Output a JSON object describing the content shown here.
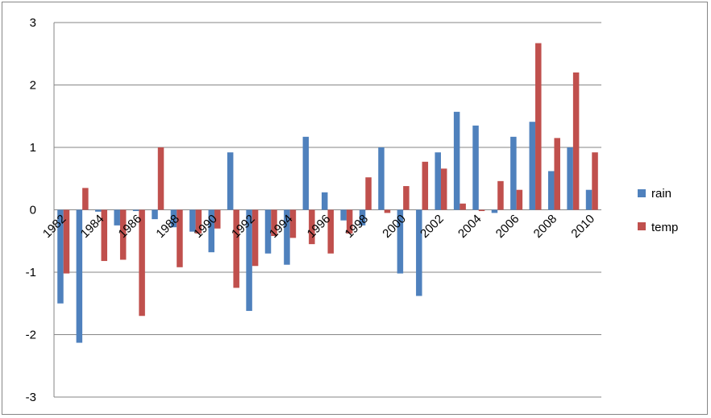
{
  "chart_data": {
    "type": "bar",
    "title": "",
    "xlabel": "",
    "ylabel": "",
    "ylim": [
      -3,
      3
    ],
    "yticks": [
      -3,
      -2,
      -1,
      0,
      1,
      2,
      3
    ],
    "grid": true,
    "legend_position": "right",
    "categories": [
      "1982",
      "1983",
      "1984",
      "1985",
      "1986",
      "1987",
      "1988",
      "1989",
      "1990",
      "1991",
      "1992",
      "1993",
      "1994",
      "1995",
      "1996",
      "1997",
      "1998",
      "1999",
      "2000",
      "2001",
      "2002",
      "2003",
      "2004",
      "2005",
      "2006",
      "2007",
      "2008",
      "2009",
      "2010"
    ],
    "x_tick_labels": [
      "1982",
      "1984",
      "1986",
      "1988",
      "1990",
      "1992",
      "1994",
      "1996",
      "1998",
      "2000",
      "2002",
      "2004",
      "2006",
      "2008",
      "2010"
    ],
    "series": [
      {
        "name": "rain",
        "color": "#4f81bd",
        "values": [
          -1.5,
          -2.13,
          -0.03,
          -0.25,
          -0.02,
          -0.15,
          -0.28,
          -0.35,
          -0.68,
          0.92,
          -1.62,
          -0.7,
          -0.88,
          1.17,
          0.28,
          -0.17,
          -0.25,
          1.0,
          -1.02,
          -1.38,
          0.92,
          1.57,
          1.35,
          -0.05,
          1.17,
          1.41,
          0.62,
          1.0,
          0.32
        ]
      },
      {
        "name": "temp",
        "color": "#c0504d",
        "values": [
          -1.02,
          0.35,
          -0.82,
          -0.8,
          -1.7,
          1.0,
          -0.92,
          -0.38,
          -0.3,
          -1.25,
          -0.9,
          -0.42,
          -0.45,
          -0.55,
          -0.7,
          -0.38,
          0.52,
          -0.05,
          0.38,
          0.77,
          0.66,
          0.1,
          -0.02,
          0.46,
          0.32,
          2.67,
          1.15,
          2.2,
          0.92
        ]
      }
    ]
  }
}
